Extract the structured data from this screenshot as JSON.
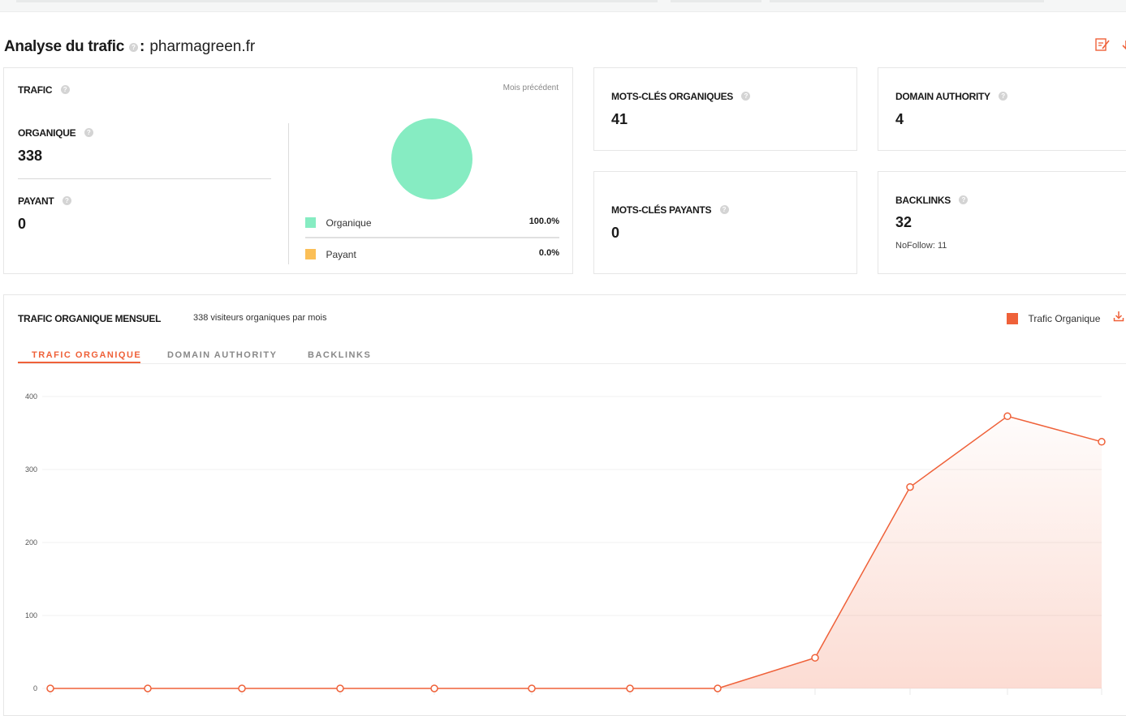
{
  "header": {
    "title": "Analyse du trafic",
    "separator": ":",
    "domain": "pharmagreen.fr",
    "help_glyph": "?",
    "edit_icon": "edit-report-icon",
    "download_icon": "download-icon"
  },
  "traffic_card": {
    "title": "TRAFIC",
    "period": "Mois précédent",
    "organic_label": "ORGANIQUE",
    "organic_value": "338",
    "paid_label": "PAYANT",
    "paid_value": "0",
    "legend": [
      {
        "label": "Organique",
        "value": "100.0%",
        "color": "#86ecc2"
      },
      {
        "label": "Payant",
        "value": "0.0%",
        "color": "#fbbf57"
      }
    ],
    "pie_share_organic": 1.0
  },
  "kpis": {
    "organic_keywords": {
      "label": "MOTS-CLÉS ORGANIQUES",
      "value": "41"
    },
    "paid_keywords": {
      "label": "MOTS-CLÉS PAYANTS",
      "value": "0"
    },
    "domain_authority": {
      "label": "DOMAIN AUTHORITY",
      "value": "4"
    },
    "backlinks": {
      "label": "BACKLINKS",
      "value": "32",
      "nofollow": "NoFollow: 11"
    }
  },
  "monthly": {
    "title": "TRAFIC ORGANIQUE MENSUEL",
    "subtitle": "338 visiteurs organiques par mois",
    "legend_label": "Trafic Organique",
    "tabs": [
      "TRAFIC ORGANIQUE",
      "DOMAIN AUTHORITY",
      "BACKLINKS"
    ],
    "active_tab": 0
  },
  "colors": {
    "accent": "#ef6139",
    "organic": "#86ecc2",
    "paid": "#fbbf57"
  },
  "chart_data": {
    "type": "area",
    "series": [
      {
        "name": "Trafic Organique",
        "values": [
          0,
          0,
          0,
          0,
          0,
          0,
          0,
          0,
          42,
          276,
          373,
          338
        ]
      }
    ],
    "y_ticks": [
      0,
      100,
      200,
      300,
      400
    ],
    "ylim": [
      0,
      400
    ],
    "grid": true,
    "legend": "top-right"
  }
}
